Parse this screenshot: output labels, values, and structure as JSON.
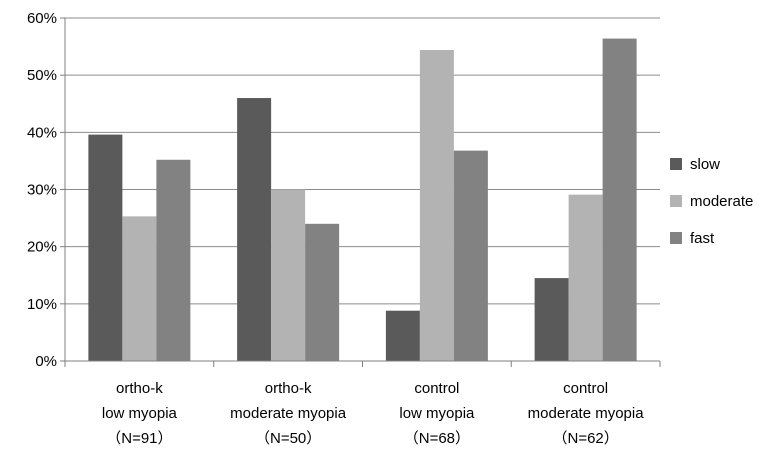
{
  "chart_data": {
    "type": "bar",
    "title": "",
    "xlabel": "",
    "ylabel": "",
    "ylim": [
      0,
      60
    ],
    "y_ticks": [
      "0%",
      "10%",
      "20%",
      "30%",
      "40%",
      "50%",
      "60%"
    ],
    "y_tick_values": [
      0,
      10,
      20,
      30,
      40,
      50,
      60
    ],
    "grid": true,
    "legend_position": "right",
    "categories": [
      {
        "lines": [
          "ortho-k",
          "low myopia",
          "（N=91）"
        ]
      },
      {
        "lines": [
          "ortho-k",
          "moderate myopia",
          "（N=50）"
        ]
      },
      {
        "lines": [
          "control",
          "low myopia",
          "（N=68）"
        ]
      },
      {
        "lines": [
          "control",
          "moderate myopia",
          "（N=62）"
        ]
      }
    ],
    "series": [
      {
        "name": "slow",
        "color": "#5a5a5a",
        "values": [
          39.6,
          46.0,
          8.8,
          14.5
        ]
      },
      {
        "name": "moderate",
        "color": "#b3b3b3",
        "values": [
          25.3,
          30.0,
          54.4,
          29.1
        ]
      },
      {
        "name": "fast",
        "color": "#828282",
        "values": [
          35.2,
          24.0,
          36.8,
          56.4
        ]
      }
    ]
  }
}
